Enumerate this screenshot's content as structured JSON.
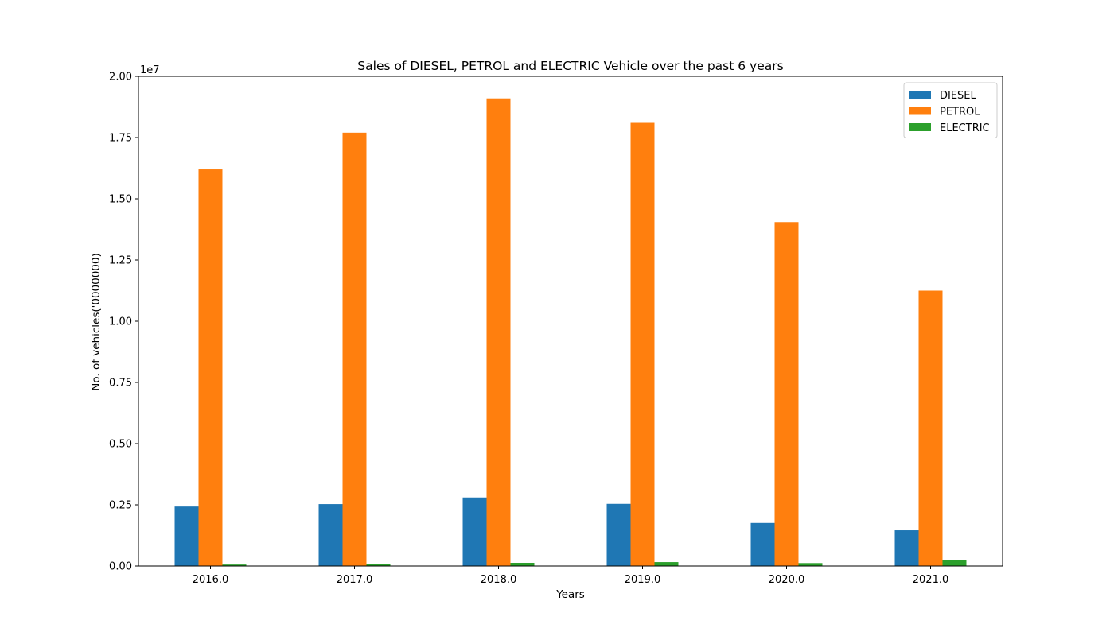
{
  "chart_data": {
    "type": "bar",
    "title": "Sales of DIESEL, PETROL and ELECTRIC Vehicle over the past 6 years",
    "xlabel": "Years",
    "ylabel": "No. of vehicles('0000000)",
    "y_offset_label": "1e7",
    "categories": [
      "2016.0",
      "2017.0",
      "2018.0",
      "2019.0",
      "2020.0",
      "2021.0"
    ],
    "ylim": [
      0,
      20000000
    ],
    "y_ticks": [
      0,
      2500000,
      5000000,
      7500000,
      10000000,
      12500000,
      15000000,
      17500000,
      20000000
    ],
    "y_tick_labels": [
      "0.00",
      "0.25",
      "0.50",
      "0.75",
      "1.00",
      "1.25",
      "1.50",
      "1.75",
      "2.00"
    ],
    "grid": false,
    "legend_position": "top-right",
    "series": [
      {
        "name": "DIESEL",
        "color": "#1f77b4",
        "values": [
          2430000,
          2530000,
          2800000,
          2540000,
          1760000,
          1460000
        ]
      },
      {
        "name": "PETROL",
        "color": "#ff7f0e",
        "values": [
          16200000,
          17700000,
          19100000,
          18100000,
          14050000,
          11250000
        ]
      },
      {
        "name": "ELECTRIC",
        "color": "#2ca02c",
        "values": [
          60000,
          90000,
          130000,
          160000,
          120000,
          230000
        ]
      }
    ]
  }
}
